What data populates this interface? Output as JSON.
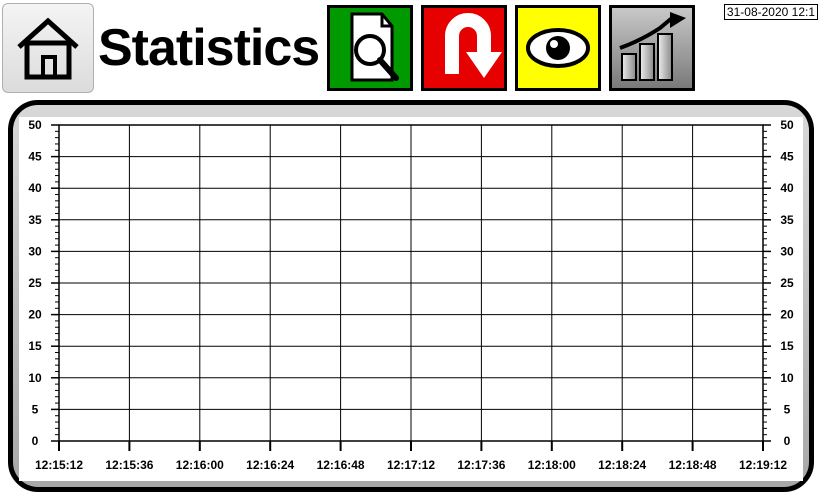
{
  "header": {
    "title": "Statistics",
    "timestamp": "31-08-2020 12:1"
  },
  "toolbar": {
    "home": {
      "name": "home-button"
    },
    "buttons": [
      {
        "name": "search-document-button",
        "bg": "#009a00",
        "icon": "document-magnify"
      },
      {
        "name": "undo-button",
        "bg": "#e60000",
        "icon": "u-turn-arrow"
      },
      {
        "name": "view-button",
        "bg": "#ffff00",
        "icon": "eye"
      },
      {
        "name": "trend-button",
        "bg_gradient": [
          "#c8c8c8",
          "#7a7a7a"
        ],
        "icon": "bar-trend"
      }
    ]
  },
  "chart": {
    "type": "line",
    "background_color": "#ffffff",
    "grid_color": "#000000",
    "tick_color": "#000000",
    "label_color": "#000000",
    "label_fontsize": 12,
    "label_fontweight": "bold",
    "y": {
      "min": 0,
      "max": 50,
      "major_step": 5,
      "ticks": [
        0,
        5,
        10,
        15,
        20,
        25,
        30,
        35,
        40,
        45,
        50
      ],
      "minor_per_major": 5
    },
    "x": {
      "labels": [
        "12:15:12",
        "12:15:36",
        "12:16:00",
        "12:16:24",
        "12:16:48",
        "12:17:12",
        "12:17:36",
        "12:18:00",
        "12:18:24",
        "12:18:48",
        "12:19:12"
      ]
    },
    "series": []
  }
}
